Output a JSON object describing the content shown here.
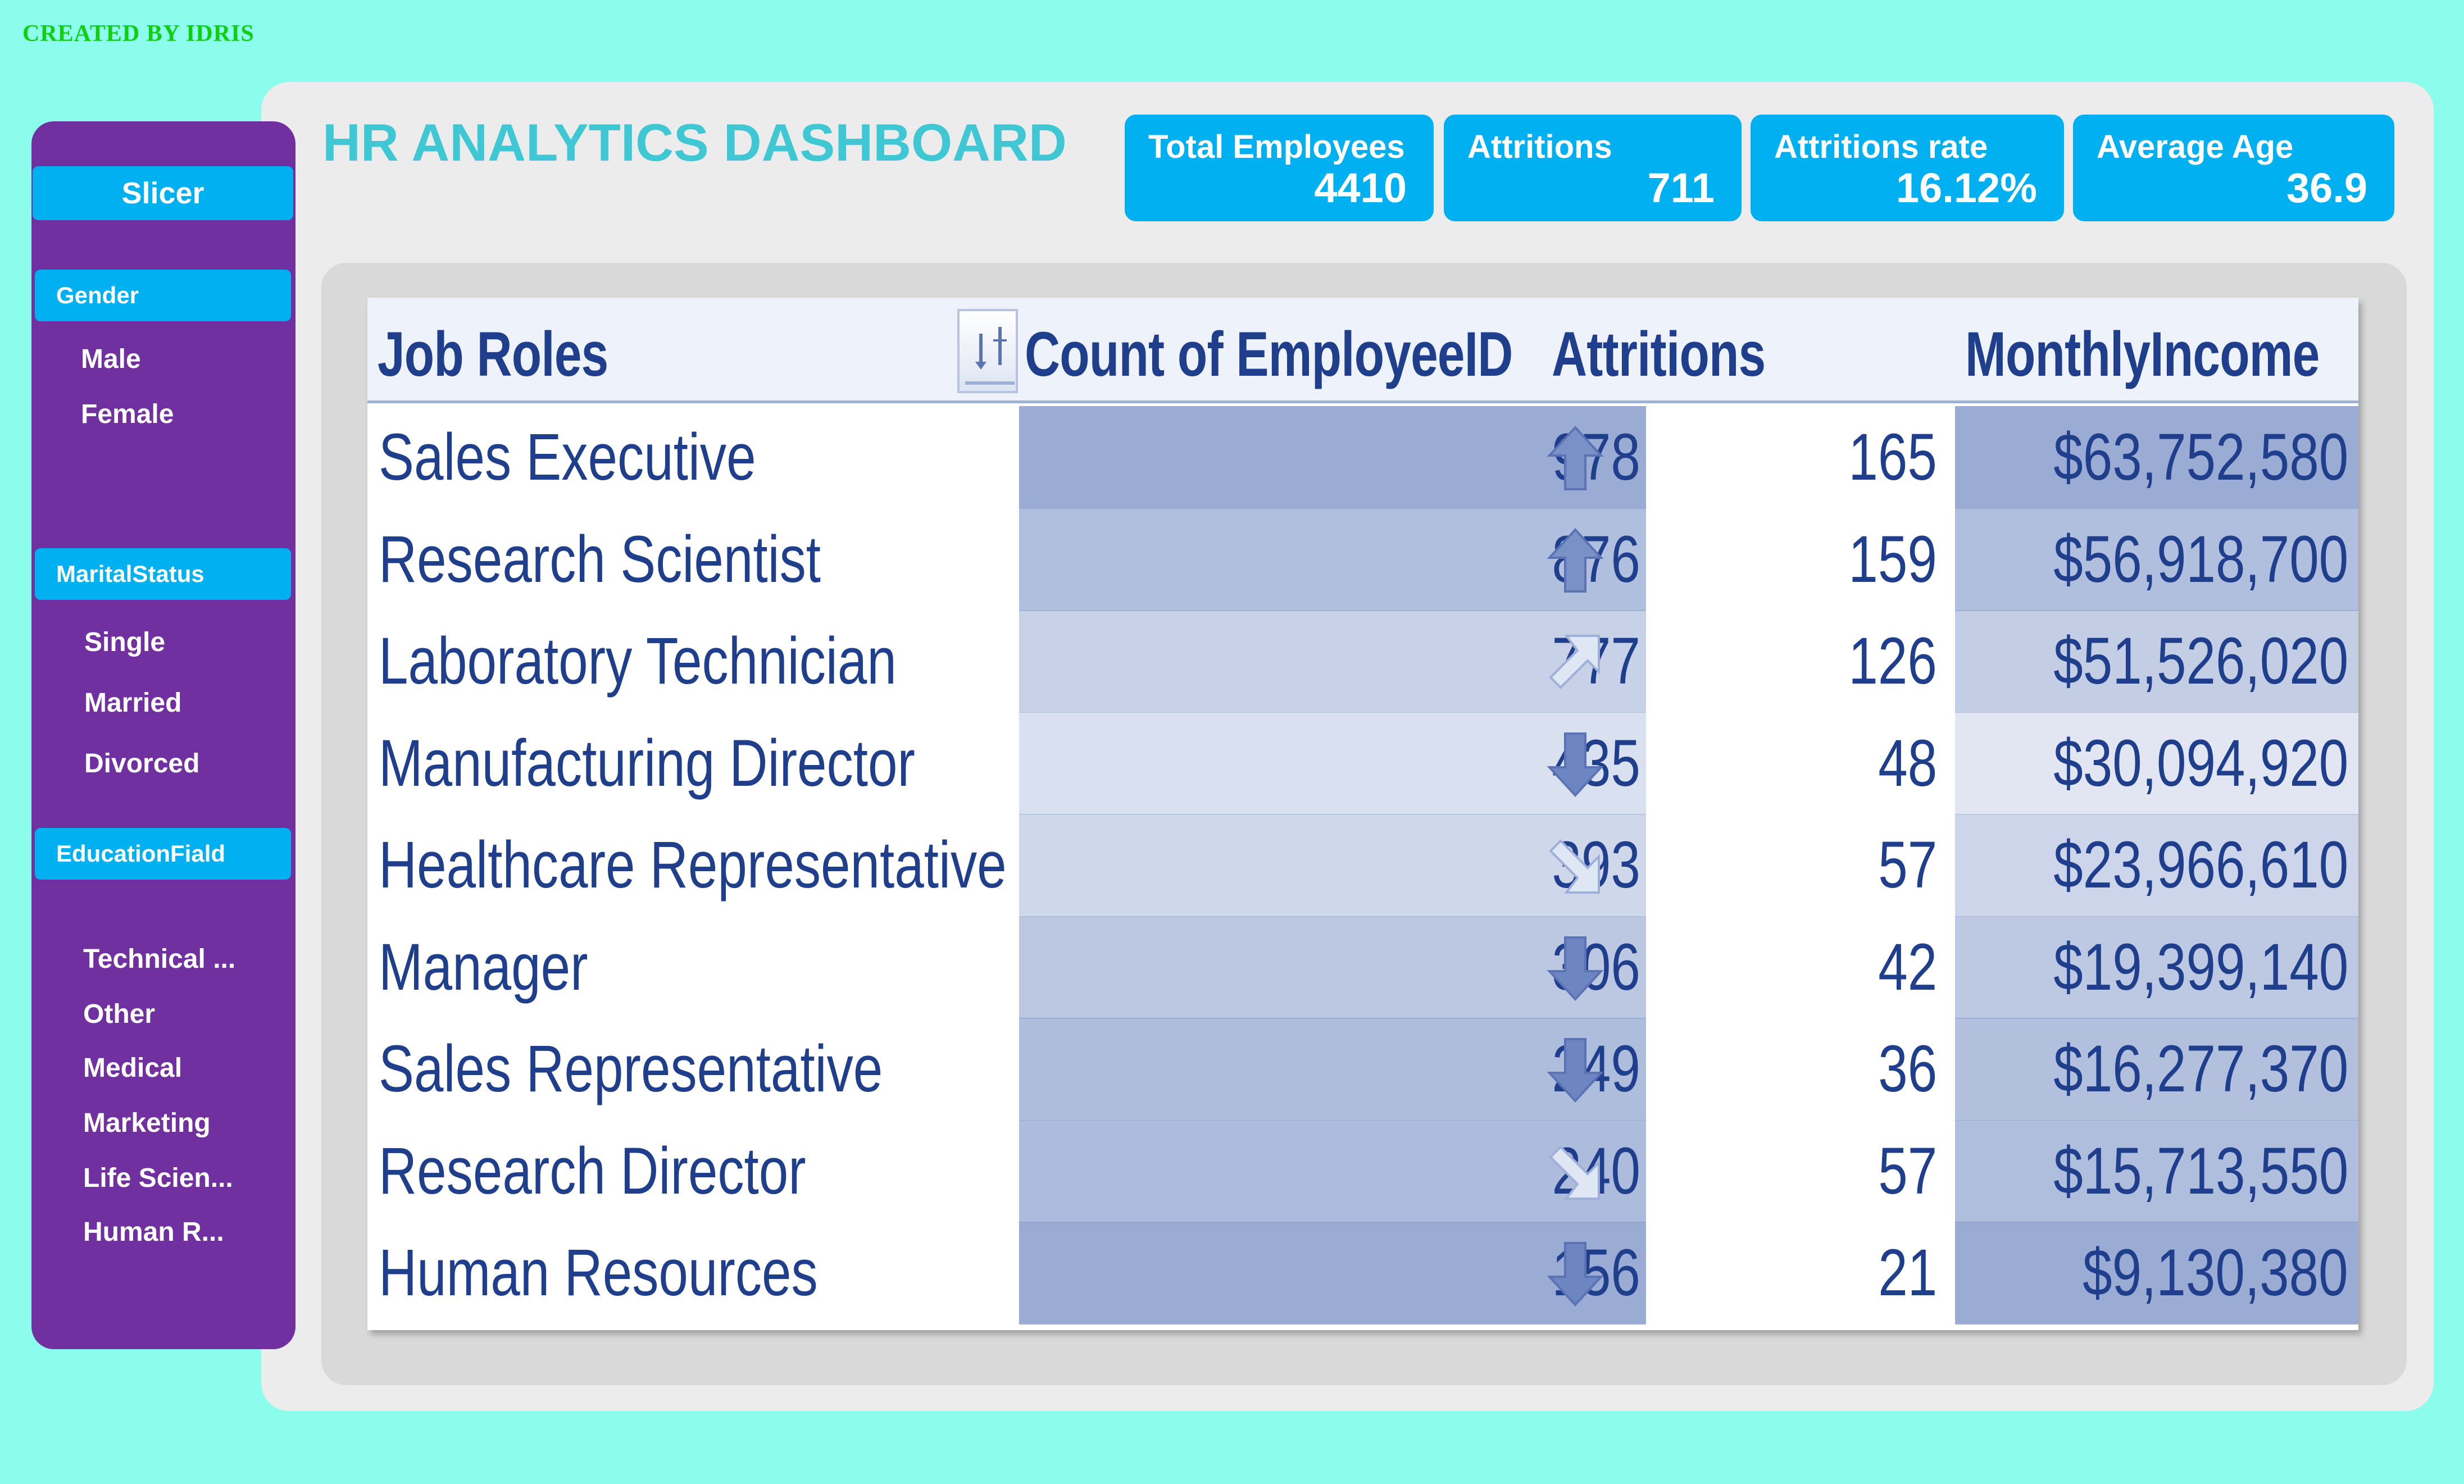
{
  "credit": "CREATED BY IDRIS",
  "title": "HR ANALYTICS DASHBOARD",
  "kpis": [
    {
      "label": "Total Employees",
      "value": "4410"
    },
    {
      "label": "Attritions",
      "value": "711"
    },
    {
      "label": "Attritions rate",
      "value": "16.12%"
    },
    {
      "label": "Average Age",
      "value": "36.9"
    }
  ],
  "slicer": {
    "header": "Slicer",
    "gender": {
      "header": "Gender",
      "items": [
        "Male",
        "Female"
      ]
    },
    "marital": {
      "header": "MaritalStatus",
      "items": [
        "Single",
        "Married",
        "Divorced"
      ]
    },
    "education": {
      "header": "EducationFiald",
      "items": [
        "Technical ...",
        "Other",
        "Medical",
        "Marketing",
        "Life Scien...",
        "Human R..."
      ]
    }
  },
  "table": {
    "headers": {
      "role": "Job Roles",
      "count": "Count of EmployeeID",
      "attrition": "Attritions",
      "income": "MonthlyIncome"
    },
    "colors": {
      "header_text": "#1f3e8c",
      "row_shade_base": "#8fa3cf",
      "icon": "#7a91c8"
    },
    "rows": [
      {
        "role": "Sales Executive",
        "count": "978",
        "count_value": 978,
        "trend": "up-icon",
        "attrition": "165",
        "income": "$63,752,580",
        "income_value": 63752580
      },
      {
        "role": "Research Scientist",
        "count": "876",
        "count_value": 876,
        "trend": "up-icon",
        "attrition": "159",
        "income": "$56,918,700",
        "income_value": 56918700
      },
      {
        "role": "Laboratory Technician",
        "count": "777",
        "count_value": 777,
        "trend": "up-right-icon",
        "attrition": "126",
        "income": "$51,526,020",
        "income_value": 51526020
      },
      {
        "role": "Manufacturing Director",
        "count": "435",
        "count_value": 435,
        "trend": "down-icon",
        "attrition": "48",
        "income": "$30,094,920",
        "income_value": 30094920
      },
      {
        "role": "Healthcare Representative",
        "count": "393",
        "count_value": 393,
        "trend": "down-right-icon",
        "attrition": "57",
        "income": "$23,966,610",
        "income_value": 23966610
      },
      {
        "role": "Manager",
        "count": "306",
        "count_value": 306,
        "trend": "down-icon",
        "attrition": "42",
        "income": "$19,399,140",
        "income_value": 19399140
      },
      {
        "role": "Sales Representative",
        "count": "249",
        "count_value": 249,
        "trend": "down-icon",
        "attrition": "36",
        "income": "$16,277,370",
        "income_value": 16277370
      },
      {
        "role": "Research Director",
        "count": "240",
        "count_value": 240,
        "trend": "down-right-icon",
        "attrition": "57",
        "income": "$15,713,550",
        "income_value": 15713550
      },
      {
        "role": "Human Resources",
        "count": "156",
        "count_value": 156,
        "trend": "down-icon",
        "attrition": "21",
        "income": "$9,130,380",
        "income_value": 9130380
      }
    ]
  }
}
